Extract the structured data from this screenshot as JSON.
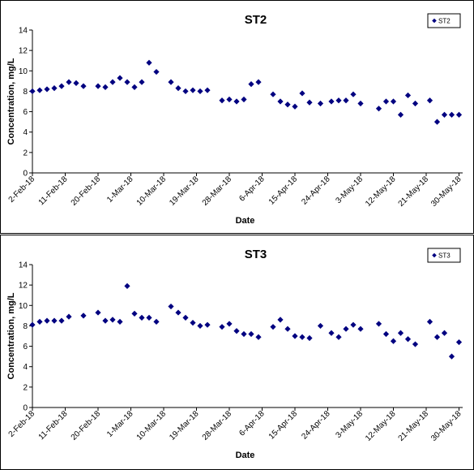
{
  "chart_data": [
    {
      "type": "scatter",
      "title": "ST2",
      "xlabel": "Date",
      "ylabel": "Concentration, mg/L",
      "ylim": [
        0,
        14
      ],
      "yticks": [
        0,
        2,
        4,
        6,
        8,
        10,
        12,
        14
      ],
      "xlim": [
        "2-Feb-18",
        "31-May-18"
      ],
      "xticks": [
        "2-Feb-18",
        "11-Feb-18",
        "20-Feb-18",
        "1-Mar-18",
        "10-Mar-18",
        "19-Mar-18",
        "28-Mar-18",
        "6-Apr-18",
        "15-Apr-18",
        "24-Apr-18",
        "3-May-18",
        "12-May-18",
        "21-May-18",
        "30-May-18"
      ],
      "legend_position": "top-right",
      "grid": false,
      "color": "#000080",
      "series": [
        {
          "name": "ST2",
          "x": [
            "2-Feb-18",
            "4-Feb-18",
            "6-Feb-18",
            "8-Feb-18",
            "10-Feb-18",
            "12-Feb-18",
            "14-Feb-18",
            "16-Feb-18",
            "20-Feb-18",
            "22-Feb-18",
            "24-Feb-18",
            "26-Feb-18",
            "28-Feb-18",
            "2-Mar-18",
            "4-Mar-18",
            "6-Mar-18",
            "8-Mar-18",
            "12-Mar-18",
            "14-Mar-18",
            "16-Mar-18",
            "18-Mar-18",
            "20-Mar-18",
            "22-Mar-18",
            "26-Mar-18",
            "28-Mar-18",
            "30-Mar-18",
            "1-Apr-18",
            "3-Apr-18",
            "5-Apr-18",
            "9-Apr-18",
            "11-Apr-18",
            "13-Apr-18",
            "15-Apr-18",
            "17-Apr-18",
            "19-Apr-18",
            "22-Apr-18",
            "25-Apr-18",
            "27-Apr-18",
            "29-Apr-18",
            "1-May-18",
            "3-May-18",
            "8-May-18",
            "10-May-18",
            "12-May-18",
            "14-May-18",
            "16-May-18",
            "18-May-18",
            "22-May-18",
            "24-May-18",
            "26-May-18",
            "28-May-18",
            "30-May-18"
          ],
          "y": [
            8.0,
            8.1,
            8.2,
            8.3,
            8.5,
            8.9,
            8.8,
            8.5,
            8.5,
            8.4,
            8.9,
            9.3,
            8.9,
            8.4,
            8.9,
            10.8,
            9.9,
            8.9,
            8.3,
            8.0,
            8.1,
            8.0,
            8.1,
            7.1,
            7.2,
            7.0,
            7.2,
            8.7,
            8.9,
            7.7,
            7.0,
            6.7,
            6.5,
            7.8,
            6.9,
            6.8,
            7.0,
            7.1,
            7.1,
            7.7,
            6.8,
            6.3,
            7.0,
            7.0,
            5.7,
            7.6,
            6.8,
            7.1,
            5.0,
            5.7,
            5.7,
            5.7
          ]
        }
      ]
    },
    {
      "type": "scatter",
      "title": "ST3",
      "xlabel": "Date",
      "ylabel": "Concentration, mg/L",
      "ylim": [
        0,
        14
      ],
      "yticks": [
        0,
        2,
        4,
        6,
        8,
        10,
        12,
        14
      ],
      "xlim": [
        "2-Feb-18",
        "31-May-18"
      ],
      "xticks": [
        "2-Feb-18",
        "11-Feb-18",
        "20-Feb-18",
        "1-Mar-18",
        "10-Mar-18",
        "19-Mar-18",
        "28-Mar-18",
        "6-Apr-18",
        "15-Apr-18",
        "24-Apr-18",
        "3-May-18",
        "12-May-18",
        "21-May-18",
        "30-May-18"
      ],
      "legend_position": "top-right",
      "grid": false,
      "color": "#000080",
      "series": [
        {
          "name": "ST3",
          "x": [
            "2-Feb-18",
            "4-Feb-18",
            "6-Feb-18",
            "8-Feb-18",
            "10-Feb-18",
            "12-Feb-18",
            "16-Feb-18",
            "20-Feb-18",
            "22-Feb-18",
            "24-Feb-18",
            "26-Feb-18",
            "28-Feb-18",
            "2-Mar-18",
            "4-Mar-18",
            "6-Mar-18",
            "8-Mar-18",
            "12-Mar-18",
            "14-Mar-18",
            "16-Mar-18",
            "18-Mar-18",
            "20-Mar-18",
            "22-Mar-18",
            "26-Mar-18",
            "28-Mar-18",
            "30-Mar-18",
            "1-Apr-18",
            "3-Apr-18",
            "5-Apr-18",
            "9-Apr-18",
            "11-Apr-18",
            "13-Apr-18",
            "15-Apr-18",
            "17-Apr-18",
            "19-Apr-18",
            "22-Apr-18",
            "25-Apr-18",
            "27-Apr-18",
            "29-Apr-18",
            "1-May-18",
            "3-May-18",
            "8-May-18",
            "10-May-18",
            "12-May-18",
            "14-May-18",
            "16-May-18",
            "18-May-18",
            "22-May-18",
            "24-May-18",
            "26-May-18",
            "28-May-18",
            "30-May-18"
          ],
          "y": [
            8.1,
            8.4,
            8.5,
            8.5,
            8.5,
            8.9,
            9.0,
            9.3,
            8.5,
            8.6,
            8.4,
            11.9,
            9.2,
            8.8,
            8.8,
            8.4,
            9.9,
            9.3,
            8.8,
            8.3,
            8.0,
            8.1,
            7.9,
            8.2,
            7.5,
            7.2,
            7.2,
            6.9,
            7.9,
            8.6,
            7.7,
            7.0,
            6.9,
            6.8,
            8.0,
            7.3,
            6.9,
            7.7,
            8.1,
            7.7,
            8.2,
            7.2,
            6.5,
            7.3,
            6.7,
            6.2,
            8.4,
            6.9,
            7.3,
            5.0,
            6.4
          ]
        }
      ]
    }
  ]
}
